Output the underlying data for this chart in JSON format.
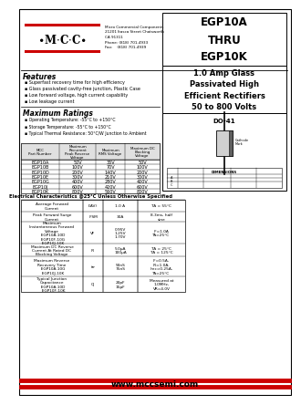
{
  "bg_color": "#ffffff",
  "red_color": "#cc0000",
  "title_part": "EGP10A\nTHRU\nEGP10K",
  "subtitle": "1.0 Amp Glass\nPassivated High\nEfficient Rectifiers\n50 to 800 Volts",
  "package": "DO-41",
  "company_line1": "Micro Commercial Components",
  "company_line2": "21201 Itasca Street Chatsworth",
  "company_line3": "CA 91311",
  "company_line4": "Phone: (818) 701-4933",
  "company_line5": "Fax:    (818) 701-4939",
  "features_title": "Features",
  "features": [
    "Superfast recovery time for high efficiency",
    "Glass passivated cavity-free junction, Plastic Case",
    "Low forward voltage, high current capability",
    "Low leakage current"
  ],
  "max_ratings_title": "Maximum Ratings",
  "max_ratings_bullets": [
    "Operating Temperature: -55°C to +150°C",
    "Storage Temperature: -55°C to +150°C",
    "Typical Thermal Resistance: 50°C/W Junction to Ambient"
  ],
  "table1_headers": [
    "MCC\nPart Number",
    "Maximum\nRecurrent\nPeak Reverse\nVoltage",
    "Maximum\nRMS Voltage",
    "Maximum DC\nBlocking\nVoltage"
  ],
  "table1_rows": [
    [
      "EGP10A",
      "50V",
      "35V",
      "50V"
    ],
    [
      "EGP10B",
      "100V",
      "70V",
      "100V"
    ],
    [
      "EGP10D",
      "200V",
      "140V",
      "200V"
    ],
    [
      "EGP10E",
      "300V",
      "210V",
      "300V"
    ],
    [
      "EGP10G",
      "400V",
      "280V",
      "400V"
    ],
    [
      "EGP10J",
      "600V",
      "420V",
      "600V"
    ],
    [
      "EGP10K",
      "800V",
      "560V",
      "800V"
    ]
  ],
  "elec_title": "Electrical Characteristics @25°C Unless Otherwise Specified",
  "elec_col_headers": [
    "",
    "",
    "",
    ""
  ],
  "elec_rows": [
    [
      "Average Forward\nCurrent",
      "I(AV)",
      "1.0 A",
      "TA = 55°C"
    ],
    [
      "Peak Forward Surge\nCurrent",
      "IFSM",
      "30A",
      "8.3ms, half\nsine"
    ],
    [
      "Maximum\nInstantaneous Forward\nVoltage\n  EGP10A-10D\n  EGP10F-10G\n  EGP10J-10K",
      "VF",
      "0.95V\n1.25V\n1.70V",
      "IF=1.0A\nTA=25°C"
    ],
    [
      "Maximum DC Reverse\nCurrent At Rated DC\nBlocking Voltage",
      "IR",
      "5.0μA\n100μA",
      "TA = 25°C\nTA = 125°C"
    ],
    [
      "Maximum Reverse\nRecovery Time\n  EGP10A-10G\n  EGP10J-10K",
      "trr",
      "50nS\n75nS",
      "IF=0.5A,\nIR=1.0A,\nIrec=0.25A,\nTA=25°C"
    ],
    [
      "Typical Junction\nCapacitance\n  EGP10A-10D\n  EGP10F-10K",
      "CJ",
      "20pF\n15pF",
      "Measured at\n1.0MHz,\nVR=4.0V"
    ]
  ],
  "website": "www.mccsemi.com"
}
